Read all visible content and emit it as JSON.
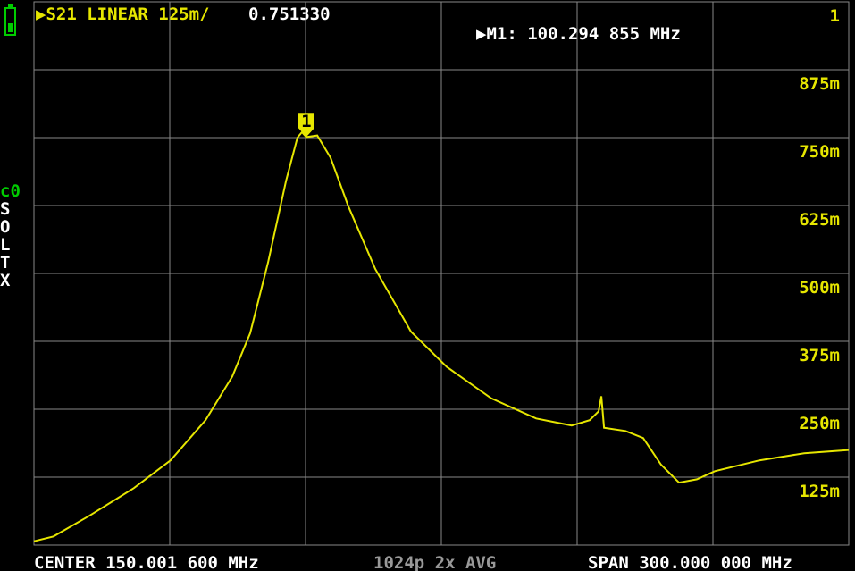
{
  "chart_data": {
    "type": "line",
    "title": "▶S21 LINEAR 125m/",
    "title_value": "0.751330",
    "marker_readout": "▶M1: 100.294 855 MHz",
    "channel": "c0",
    "calibration": [
      "S",
      "O",
      "L",
      "T",
      "X"
    ],
    "footer": {
      "center": "CENTER 150.001 600 MHz",
      "points": "1024p 2x AVG",
      "span": "SPAN 300.000 000 MHz"
    },
    "xlim": [
      0,
      300
    ],
    "ylim": [
      0,
      1
    ],
    "yticks": [
      {
        "value": 0.125,
        "label": "125m"
      },
      {
        "value": 0.25,
        "label": "250m"
      },
      {
        "value": 0.375,
        "label": "375m"
      },
      {
        "value": 0.5,
        "label": "500m"
      },
      {
        "value": 0.625,
        "label": "625m"
      },
      {
        "value": 0.75,
        "label": "750m"
      },
      {
        "value": 0.875,
        "label": "875m"
      },
      1
    ],
    "grid": true,
    "x": [
      0,
      7.2,
      20.4,
      36.8,
      50.3,
      63.2,
      73,
      79.6,
      86.2,
      92.8,
      97,
      98.7,
      100.3,
      104.3,
      109.2,
      115.8,
      125.7,
      138.8,
      152,
      168.4,
      184.9,
      198,
      204.6,
      207.9,
      208.9,
      209.9,
      217.8,
      224.3,
      230.9,
      237.5,
      244.1,
      250.7,
      267.1,
      283.6,
      300
    ],
    "series": [
      {
        "name": "S21",
        "color": "#e6e600",
        "values": [
          0.007,
          0.016,
          0.054,
          0.105,
          0.156,
          0.23,
          0.31,
          0.39,
          0.52,
          0.67,
          0.75,
          0.76,
          0.751,
          0.754,
          0.713,
          0.623,
          0.508,
          0.393,
          0.328,
          0.27,
          0.233,
          0.22,
          0.23,
          0.246,
          0.274,
          0.216,
          0.21,
          0.197,
          0.148,
          0.115,
          0.121,
          0.136,
          0.156,
          0.169,
          0.175
        ]
      }
    ],
    "marker": {
      "label": "1",
      "x": 100.294855,
      "y": 0.75133
    }
  }
}
